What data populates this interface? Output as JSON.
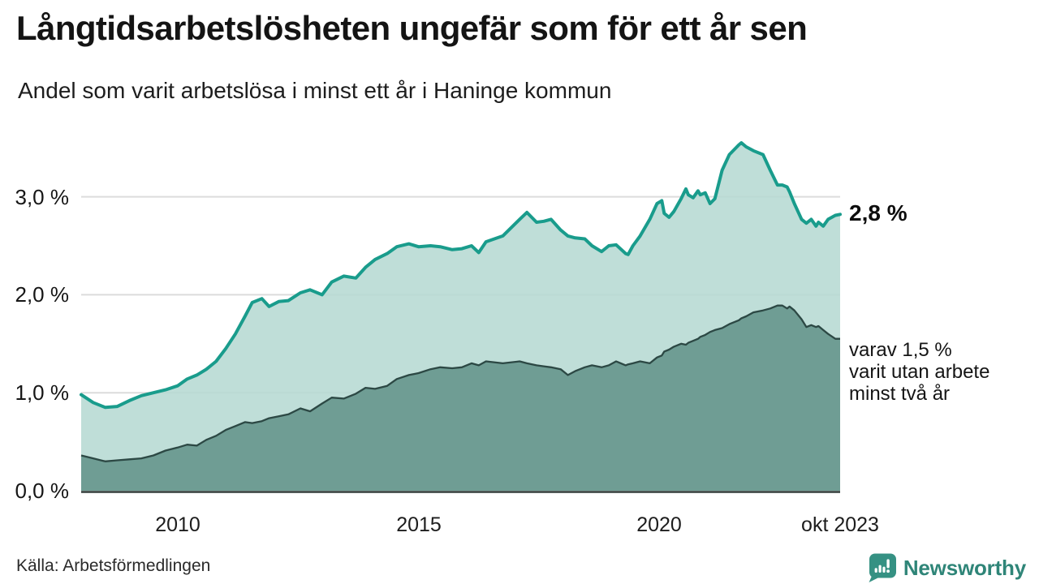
{
  "header": {
    "title": "Långtidsarbetslösheten ungefär som för ett år sen",
    "subtitle": "Andel som varit arbetslösa i minst ett år i Haninge kommun"
  },
  "chart_data": {
    "type": "area",
    "title": "Långtidsarbetslösheten ungefär som för ett år sen",
    "xlabel": "",
    "ylabel": "",
    "xlim": [
      2008.0,
      2023.75
    ],
    "ylim": [
      0,
      3.7
    ],
    "grid": "horizontal",
    "grid_color": "#dcdcdc",
    "baseline_color": "#313b38",
    "x": [
      2008.0,
      2008.25,
      2008.5,
      2008.75,
      2009.0,
      2009.25,
      2009.5,
      2009.75,
      2010.0,
      2010.2,
      2010.4,
      2010.6,
      2010.8,
      2011.0,
      2011.2,
      2011.4,
      2011.55,
      2011.75,
      2011.9,
      2012.1,
      2012.3,
      2012.55,
      2012.75,
      2013.0,
      2013.2,
      2013.45,
      2013.7,
      2013.9,
      2014.1,
      2014.35,
      2014.55,
      2014.8,
      2015.0,
      2015.25,
      2015.45,
      2015.7,
      2015.9,
      2016.1,
      2016.25,
      2016.4,
      2016.75,
      2017.1,
      2017.25,
      2017.45,
      2017.6,
      2017.75,
      2017.95,
      2018.1,
      2018.25,
      2018.45,
      2018.6,
      2018.8,
      2018.95,
      2019.1,
      2019.3,
      2019.35,
      2019.45,
      2019.6,
      2019.8,
      2019.95,
      2020.05,
      2020.1,
      2020.2,
      2020.3,
      2020.45,
      2020.55,
      2020.6,
      2020.7,
      2020.8,
      2020.85,
      2020.95,
      2021.05,
      2021.15,
      2021.3,
      2021.45,
      2021.65,
      2021.7,
      2021.8,
      2021.95,
      2022.15,
      2022.3,
      2022.45,
      2022.55,
      2022.65,
      2022.7,
      2022.8,
      2022.95,
      2023.05,
      2023.15,
      2023.25,
      2023.3,
      2023.4,
      2023.5,
      2023.65,
      2023.75
    ],
    "series": [
      {
        "name": "Andel arbetslösa minst ett år",
        "line_color": "#199c8c",
        "fill_color": "#b6dad3",
        "values": [
          0.98,
          0.9,
          0.85,
          0.86,
          0.92,
          0.97,
          1.0,
          1.03,
          1.07,
          1.14,
          1.18,
          1.24,
          1.32,
          1.45,
          1.6,
          1.78,
          1.92,
          1.96,
          1.88,
          1.93,
          1.94,
          2.02,
          2.05,
          2.0,
          2.13,
          2.19,
          2.17,
          2.28,
          2.36,
          2.42,
          2.49,
          2.52,
          2.49,
          2.5,
          2.49,
          2.46,
          2.47,
          2.5,
          2.43,
          2.54,
          2.6,
          2.77,
          2.84,
          2.74,
          2.75,
          2.77,
          2.66,
          2.6,
          2.58,
          2.57,
          2.5,
          2.44,
          2.5,
          2.51,
          2.42,
          2.41,
          2.5,
          2.6,
          2.77,
          2.93,
          2.96,
          2.83,
          2.79,
          2.85,
          2.98,
          3.08,
          3.02,
          2.99,
          3.06,
          3.02,
          3.04,
          2.93,
          2.98,
          3.27,
          3.43,
          3.53,
          3.55,
          3.51,
          3.47,
          3.43,
          3.27,
          3.12,
          3.12,
          3.1,
          3.05,
          2.93,
          2.77,
          2.73,
          2.77,
          2.7,
          2.74,
          2.7,
          2.77,
          2.81,
          2.82
        ]
      },
      {
        "name": "varav utan arbete minst två år",
        "line_color": "#2c4844",
        "fill_color": "#6f9d94",
        "values": [
          0.36,
          0.33,
          0.3,
          0.31,
          0.32,
          0.33,
          0.36,
          0.41,
          0.44,
          0.47,
          0.46,
          0.52,
          0.56,
          0.62,
          0.66,
          0.7,
          0.69,
          0.71,
          0.74,
          0.76,
          0.78,
          0.84,
          0.81,
          0.89,
          0.95,
          0.94,
          0.99,
          1.05,
          1.04,
          1.07,
          1.14,
          1.18,
          1.2,
          1.24,
          1.26,
          1.25,
          1.26,
          1.3,
          1.28,
          1.32,
          1.3,
          1.32,
          1.3,
          1.28,
          1.27,
          1.26,
          1.24,
          1.18,
          1.22,
          1.26,
          1.28,
          1.26,
          1.28,
          1.32,
          1.28,
          1.29,
          1.3,
          1.32,
          1.3,
          1.36,
          1.38,
          1.42,
          1.44,
          1.47,
          1.5,
          1.49,
          1.51,
          1.53,
          1.55,
          1.57,
          1.59,
          1.62,
          1.64,
          1.66,
          1.7,
          1.74,
          1.76,
          1.78,
          1.82,
          1.84,
          1.86,
          1.89,
          1.89,
          1.86,
          1.88,
          1.84,
          1.75,
          1.67,
          1.69,
          1.67,
          1.68,
          1.64,
          1.6,
          1.55,
          1.55
        ]
      }
    ],
    "yticks": [
      {
        "value": 0,
        "label": "0,0 %"
      },
      {
        "value": 1,
        "label": "1,0 %"
      },
      {
        "value": 2,
        "label": "2,0 %"
      },
      {
        "value": 3,
        "label": "3,0 %"
      }
    ],
    "xticks": [
      {
        "value": 2010,
        "label": "2010"
      },
      {
        "value": 2015,
        "label": "2015"
      },
      {
        "value": 2020,
        "label": "2020"
      },
      {
        "value": 2023.75,
        "label": "okt 2023"
      }
    ],
    "annotations": {
      "end_total": "2,8 %",
      "end_two_years_lines": [
        "varav 1,5 %",
        "varit utan arbete",
        "minst två år"
      ]
    }
  },
  "footer": {
    "source": "Källa: Arbetsförmedlingen",
    "brand": "Newsworthy",
    "brand_color": "#2f8578",
    "brand_icon_color": "#359183"
  }
}
